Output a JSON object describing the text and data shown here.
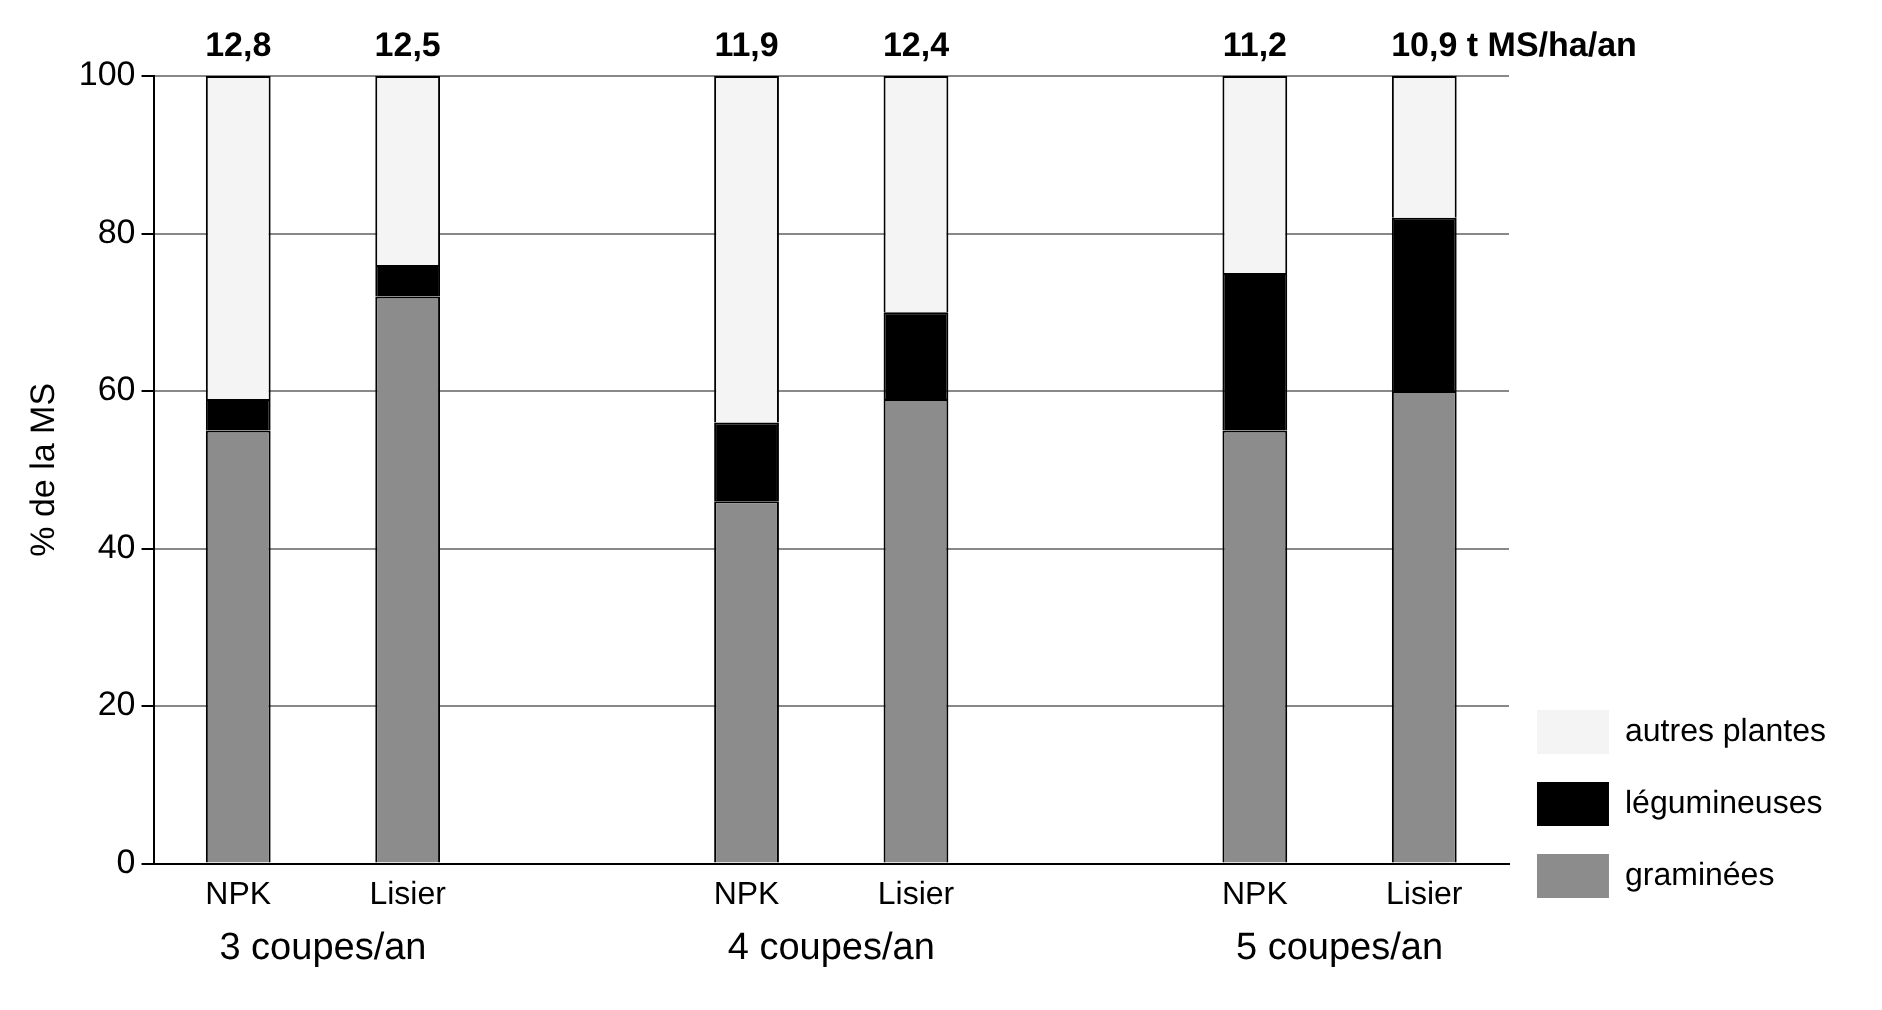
{
  "chart_data": {
    "type": "bar",
    "stacked": true,
    "ylabel": "% de la MS",
    "categories": [
      "NPK",
      "Lisier",
      null,
      "NPK",
      "Lisier",
      null,
      "NPK",
      "Lisier"
    ],
    "series": [
      {
        "name": "graminées",
        "color": "#8c8c8c",
        "values": [
          55,
          72,
          null,
          46,
          59,
          null,
          55,
          60
        ]
      },
      {
        "name": "légumineuses",
        "color": "#000000",
        "values": [
          4,
          4,
          null,
          10,
          11,
          null,
          20,
          22
        ]
      },
      {
        "name": "autres plantes",
        "color": "#f4f4f4",
        "values": [
          41,
          24,
          null,
          44,
          30,
          null,
          25,
          18
        ]
      }
    ],
    "annotations": [
      "12,8",
      "12,5",
      "11,9",
      "12,4",
      "11,2",
      "10,9 t MS/ha/an",
      "3 coupes/an",
      "4 coupes/an",
      "5 coupes/an"
    ],
    "ylim": [
      0,
      100
    ],
    "yticks": [
      0,
      20,
      40,
      60,
      80,
      100
    ],
    "grid": "y",
    "legend": "bottom right"
  }
}
